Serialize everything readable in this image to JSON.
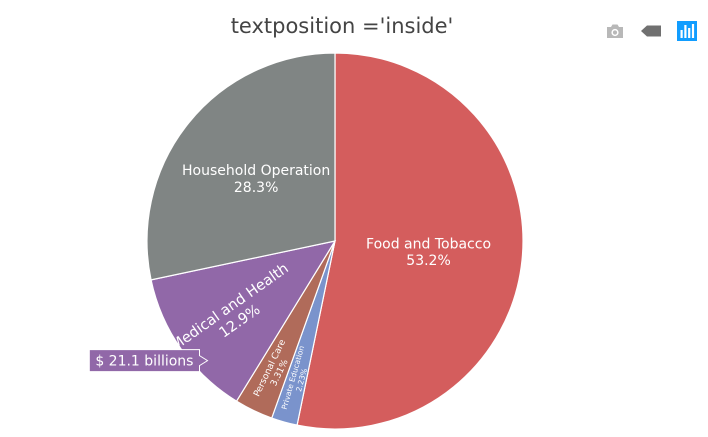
{
  "chart_data": {
    "type": "pie",
    "title": "textposition ='inside'",
    "textposition": "inside",
    "sort": "descending",
    "direction": "clockwise",
    "slices": [
      {
        "label": "Food and Tobacco",
        "percent": "53.2%",
        "value": 53.2,
        "color": "#d45d5d"
      },
      {
        "label": "Private Education",
        "percent": "2.23%",
        "value": 2.23,
        "color": "#7a93cc"
      },
      {
        "label": "Personal Care",
        "percent": "3.31%",
        "value": 3.31,
        "color": "#b06b5a"
      },
      {
        "label": "Medical and Health",
        "percent": "12.9%",
        "value": 12.9,
        "color": "#9168a8"
      },
      {
        "label": "Household Operation",
        "percent": "28.3%",
        "value": 28.3,
        "color": "#808584"
      }
    ],
    "hover": {
      "slice": "Medical and Health",
      "text": "$ 21.1  billions"
    }
  },
  "modebar": {
    "icons": [
      "camera-icon",
      "arrow-left-icon",
      "bar-chart-icon"
    ],
    "colors": {
      "inactive": "#b8b8b8",
      "active": "#119dff"
    }
  }
}
